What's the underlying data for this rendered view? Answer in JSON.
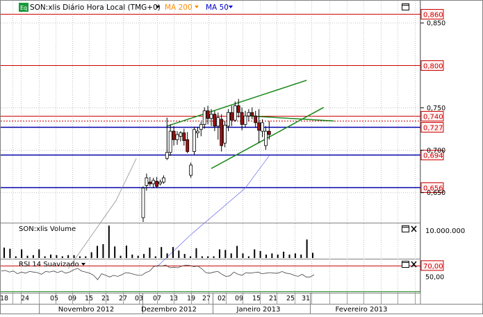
{
  "header": {
    "badge": "Eq",
    "title": "SON:xlis Diário Hora Local (TMG+0)",
    "ma200": "MA 200",
    "ma50": "MA 50"
  },
  "volume_panel": {
    "title": "SON:xlis Volume",
    "axis_label": "10.000.000"
  },
  "rsi_panel": {
    "title": "RSI 14 Suavizado",
    "axis_labels": [
      "70,00",
      "50,00"
    ]
  },
  "colors": {
    "up": "#ffffff",
    "down": "#a01010",
    "candle_outline": "#000000",
    "resistance": "#cc0000",
    "support": "#0000aa",
    "trend": "#228b22",
    "ma200": "#ff8c00",
    "ma50": "#0000cc",
    "gridline": "#c0c0c0",
    "label_bg": "#fff0f0",
    "badge": "#1a9a3a"
  },
  "chart_data": [
    {
      "type": "candlestick",
      "title": "SON:xlis Diário Hora Local (TMG+0)",
      "ylim": [
        0.615,
        0.875
      ],
      "y_ticks": [
        0.85,
        0.75,
        0.7,
        0.65
      ],
      "y_tick_labels": [
        "0,850",
        "0,750",
        "0,700",
        "0,650"
      ],
      "x_tick_labels": [
        "18",
        "24",
        "05",
        "09",
        "15",
        "21",
        "27",
        "03",
        "07",
        "13",
        "19",
        "27",
        "02",
        "09",
        "15",
        "21",
        "25",
        "31"
      ],
      "month_labels": [
        "Novembro 2012",
        "Dezembro 2012",
        "Janeiro 2013",
        "Fevereiro 2013"
      ],
      "horizontal_levels": [
        {
          "label": "0,860",
          "value": 0.86,
          "kind": "resistance"
        },
        {
          "label": "0,800",
          "value": 0.8,
          "kind": "resistance"
        },
        {
          "label": "0,740",
          "value": 0.74,
          "kind": "resistance"
        },
        {
          "label": "0,727",
          "value": 0.727,
          "kind": "support"
        },
        {
          "label": "0,694",
          "value": 0.694,
          "kind": "support"
        },
        {
          "label": "0,656",
          "value": 0.656,
          "kind": "support"
        }
      ],
      "candles": [
        {
          "o": 0.62,
          "h": 0.657,
          "l": 0.615,
          "c": 0.655
        },
        {
          "o": 0.658,
          "h": 0.672,
          "l": 0.652,
          "c": 0.667
        },
        {
          "o": 0.662,
          "h": 0.668,
          "l": 0.657,
          "c": 0.66
        },
        {
          "o": 0.66,
          "h": 0.667,
          "l": 0.655,
          "c": 0.664
        },
        {
          "o": 0.663,
          "h": 0.668,
          "l": 0.655,
          "c": 0.657
        },
        {
          "o": 0.66,
          "h": 0.665,
          "l": 0.658,
          "c": 0.662
        },
        {
          "o": 0.662,
          "h": 0.67,
          "l": 0.66,
          "c": 0.667
        },
        {
          "o": 0.69,
          "h": 0.738,
          "l": 0.688,
          "c": 0.697
        },
        {
          "o": 0.697,
          "h": 0.73,
          "l": 0.693,
          "c": 0.722
        },
        {
          "o": 0.722,
          "h": 0.728,
          "l": 0.705,
          "c": 0.712
        },
        {
          "o": 0.712,
          "h": 0.722,
          "l": 0.706,
          "c": 0.718
        },
        {
          "o": 0.716,
          "h": 0.722,
          "l": 0.71,
          "c": 0.72
        },
        {
          "o": 0.72,
          "h": 0.725,
          "l": 0.705,
          "c": 0.711
        },
        {
          "o": 0.712,
          "h": 0.721,
          "l": 0.696,
          "c": 0.698
        },
        {
          "o": 0.67,
          "h": 0.685,
          "l": 0.667,
          "c": 0.682
        },
        {
          "o": 0.698,
          "h": 0.727,
          "l": 0.694,
          "c": 0.724
        },
        {
          "o": 0.72,
          "h": 0.727,
          "l": 0.714,
          "c": 0.722
        },
        {
          "o": 0.724,
          "h": 0.733,
          "l": 0.716,
          "c": 0.73
        },
        {
          "o": 0.73,
          "h": 0.75,
          "l": 0.725,
          "c": 0.746
        },
        {
          "o": 0.746,
          "h": 0.752,
          "l": 0.73,
          "c": 0.737
        },
        {
          "o": 0.737,
          "h": 0.748,
          "l": 0.728,
          "c": 0.742
        },
        {
          "o": 0.742,
          "h": 0.746,
          "l": 0.722,
          "c": 0.728
        },
        {
          "o": 0.728,
          "h": 0.744,
          "l": 0.712,
          "c": 0.738
        },
        {
          "o": 0.736,
          "h": 0.742,
          "l": 0.698,
          "c": 0.705
        },
        {
          "o": 0.708,
          "h": 0.734,
          "l": 0.703,
          "c": 0.729
        },
        {
          "o": 0.728,
          "h": 0.748,
          "l": 0.722,
          "c": 0.744
        },
        {
          "o": 0.744,
          "h": 0.752,
          "l": 0.728,
          "c": 0.735
        },
        {
          "o": 0.735,
          "h": 0.757,
          "l": 0.733,
          "c": 0.752
        },
        {
          "o": 0.752,
          "h": 0.76,
          "l": 0.738,
          "c": 0.744
        },
        {
          "o": 0.744,
          "h": 0.75,
          "l": 0.723,
          "c": 0.73
        },
        {
          "o": 0.73,
          "h": 0.746,
          "l": 0.726,
          "c": 0.74
        },
        {
          "o": 0.74,
          "h": 0.748,
          "l": 0.734,
          "c": 0.744
        },
        {
          "o": 0.744,
          "h": 0.75,
          "l": 0.736,
          "c": 0.74
        },
        {
          "o": 0.74,
          "h": 0.746,
          "l": 0.726,
          "c": 0.732
        },
        {
          "o": 0.732,
          "h": 0.748,
          "l": 0.708,
          "c": 0.723
        },
        {
          "o": 0.722,
          "h": 0.736,
          "l": 0.715,
          "c": 0.732
        },
        {
          "o": 0.705,
          "h": 0.728,
          "l": 0.7,
          "c": 0.722
        },
        {
          "o": 0.722,
          "h": 0.734,
          "l": 0.712,
          "c": 0.718
        }
      ],
      "trend_lines": [
        {
          "from": [
            7,
            0.728
          ],
          "to": [
            48,
            0.782
          ]
        },
        {
          "from": [
            20,
            0.678
          ],
          "to": [
            53,
            0.75
          ]
        },
        {
          "from": [
            31,
            0.74
          ],
          "to": [
            56,
            0.734
          ]
        }
      ],
      "ma200": [
        [
          -22,
          0.56
        ],
        [
          -8,
          0.64
        ],
        [
          -2,
          0.69
        ]
      ],
      "ma50": [
        [
          4,
          0.562
        ],
        [
          14,
          0.6
        ],
        [
          30,
          0.655
        ],
        [
          37,
          0.693
        ]
      ]
    },
    {
      "type": "bar",
      "title": "SON:xlis Volume",
      "y_tick_labels": [
        "10.000.000"
      ],
      "values": [
        3.6,
        3.2,
        0.6,
        3.0,
        0.8,
        1.0,
        3.0,
        0.6,
        1.2,
        1.0,
        0.6,
        1.0,
        1.0,
        0.6,
        0.6,
        2.0,
        4.2,
        4.8,
        11.2,
        4.0,
        0.8,
        4.3,
        1.2,
        0.8,
        1.4,
        3.6,
        0.6,
        3.8,
        1.6,
        3.8,
        2.6,
        1.4,
        0.6,
        3.4,
        0.6,
        0.6,
        0.6,
        3.0,
        2.8,
        1.6,
        4.2,
        1.6,
        0.6,
        3.0,
        2.4,
        1.2,
        1.6,
        1.2,
        2.2,
        1.2,
        1.6,
        1.2,
        6.4,
        1.8
      ]
    },
    {
      "type": "line",
      "title": "RSI 14 Suavizado",
      "y_tick_labels": [
        "70,00",
        "50,00"
      ],
      "levels": [
        70,
        30
      ],
      "values": [
        60,
        61,
        58,
        60,
        55,
        58,
        56,
        59,
        58,
        57,
        54,
        59,
        58,
        60,
        57,
        60,
        56,
        58,
        62,
        65,
        60,
        58,
        56,
        52,
        44,
        55,
        52,
        49,
        52,
        50,
        53,
        57,
        56,
        54,
        52,
        52,
        57,
        60,
        68,
        70,
        69,
        71,
        66,
        67,
        66,
        69,
        71,
        70,
        68,
        69,
        64,
        57,
        56,
        58,
        59,
        54,
        50,
        51,
        58,
        54,
        52,
        57,
        56,
        57,
        58,
        55,
        56,
        57,
        56,
        56,
        59,
        56,
        55,
        52,
        50,
        54,
        49,
        49,
        53
      ]
    }
  ]
}
